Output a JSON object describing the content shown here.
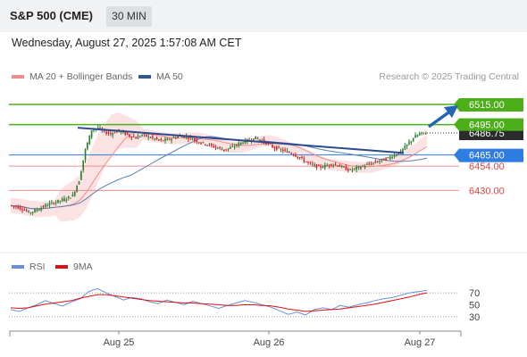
{
  "header": {
    "instrument": "S&P 500 (CME)",
    "interval": "30 MIN",
    "datetime": "Wednesday, August 27, 2025 1:57:08 AM CET"
  },
  "legend_main": [
    {
      "label": "MA 20 + Bollinger Bands",
      "color": "#f28b8b"
    },
    {
      "label": "MA 50",
      "color": "#2e5a8c"
    }
  ],
  "credit": "Research © 2025 Trading Central",
  "legend_rsi": [
    {
      "label": "RSI",
      "color": "#6a8fd8"
    },
    {
      "label": "9MA",
      "color": "#dd1111"
    }
  ],
  "colors": {
    "resistance": "#4caf1a",
    "pivot": "#2f7de1",
    "support": "#ef8f8f",
    "candle_up": "#2e7d32",
    "candle_down": "#c62828",
    "trendline": "#2c4b8f",
    "arrow": "#2466b3"
  },
  "chart_data": [
    {
      "type": "line",
      "title": "S&P 500 (CME)",
      "ylim": [
        6380,
        6530
      ],
      "x_ticks": [
        "Aug 25",
        "Aug 26",
        "Aug 27"
      ],
      "levels": [
        {
          "value": 6515.0,
          "label": "6515.00",
          "kind": "resistance"
        },
        {
          "value": 6495.0,
          "label": "6495.00",
          "kind": "resistance"
        },
        {
          "value": 6465.0,
          "label": "6465.00",
          "kind": "pivot"
        },
        {
          "value": 6454.0,
          "label": "6454.00",
          "kind": "support"
        },
        {
          "value": 6430.0,
          "label": "6430.00",
          "kind": "support"
        }
      ],
      "current_price_label": "6486.75",
      "price_series": [
        6415,
        6414,
        6412,
        6408,
        6410,
        6413,
        6416,
        6418,
        6420,
        6422,
        6425,
        6440,
        6470,
        6490,
        6492,
        6488,
        6486,
        6489,
        6487,
        6484,
        6482,
        6485,
        6483,
        6481,
        6479,
        6480,
        6482,
        6484,
        6483,
        6481,
        6478,
        6476,
        6474,
        6472,
        6470,
        6472,
        6475,
        6478,
        6480,
        6482,
        6479,
        6476,
        6472,
        6470,
        6468,
        6466,
        6462,
        6458,
        6455,
        6453,
        6454,
        6456,
        6455,
        6452,
        6450,
        6452,
        6454,
        6456,
        6458,
        6460,
        6462,
        6465,
        6468,
        6475,
        6482,
        6486,
        6487
      ]
    },
    {
      "type": "line",
      "title": "RSI",
      "ylim": [
        15,
        85
      ],
      "y_ticks": [
        70,
        50,
        30
      ],
      "series": [
        {
          "name": "RSI",
          "values": [
            42,
            39,
            45,
            50,
            57,
            52,
            48,
            55,
            60,
            72,
            77,
            70,
            64,
            58,
            62,
            60,
            55,
            52,
            58,
            54,
            50,
            56,
            52,
            48,
            44,
            49,
            53,
            57,
            54,
            50,
            46,
            40,
            34,
            38,
            33,
            42,
            45,
            42,
            49,
            46,
            50,
            53,
            57,
            60,
            62,
            66,
            70,
            72,
            74
          ]
        },
        {
          "name": "9MA",
          "values": [
            45,
            44,
            45,
            48,
            51,
            53,
            55,
            57,
            61,
            64,
            67,
            67,
            65,
            63,
            61,
            59,
            57,
            56,
            55,
            54,
            53,
            53,
            52,
            51,
            50,
            49,
            49,
            50,
            50,
            49,
            48,
            46,
            43,
            41,
            39,
            40,
            41,
            42,
            43,
            45,
            47,
            49,
            51,
            54,
            57,
            60,
            63,
            67,
            70
          ]
        }
      ]
    }
  ]
}
